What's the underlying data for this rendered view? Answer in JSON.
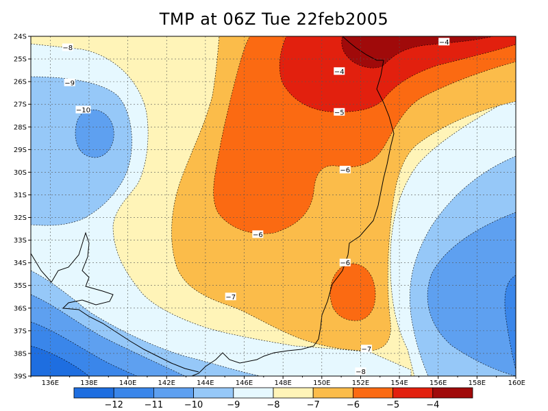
{
  "title": "TMP at 06Z Tue 22feb2005",
  "lat_ticks": [
    "24S",
    "25S",
    "26S",
    "27S",
    "28S",
    "29S",
    "30S",
    "31S",
    "32S",
    "33S",
    "34S",
    "35S",
    "36S",
    "37S",
    "38S",
    "39S"
  ],
  "lon_ticks": [
    "136E",
    "138E",
    "140E",
    "142E",
    "144E",
    "146E",
    "148E",
    "150E",
    "152E",
    "154E",
    "156E",
    "158E",
    "160E"
  ],
  "lon_range": [
    135,
    160
  ],
  "lat_range": [
    -39,
    -24
  ],
  "colorbar": {
    "levels": [
      -12,
      -11,
      -10,
      -9,
      -8,
      -7,
      -6,
      -5,
      -4
    ],
    "labels": [
      "−12",
      "−11",
      "−10",
      "−9",
      "−8",
      "−7",
      "−6",
      "−5",
      "−4"
    ],
    "colors": [
      "#1e6ee0",
      "#3a86ea",
      "#5ea0f0",
      "#96c8f8",
      "#e6f8ff",
      "#fff4b8",
      "#fbbc4a",
      "#fb6a12",
      "#e2200e",
      "#a00a0a"
    ]
  },
  "contour_labels": [
    {
      "text": "−8",
      "lon": 136.9,
      "lat": -24.5
    },
    {
      "text": "−9",
      "lon": 137.0,
      "lat": -26.05
    },
    {
      "text": "−10",
      "lon": 137.7,
      "lat": -27.25
    },
    {
      "text": "−4",
      "lon": 156.3,
      "lat": -24.25
    },
    {
      "text": "−4",
      "lon": 150.9,
      "lat": -25.55
    },
    {
      "text": "−5",
      "lon": 150.9,
      "lat": -27.35
    },
    {
      "text": "−6",
      "lon": 151.2,
      "lat": -29.9
    },
    {
      "text": "−6",
      "lon": 146.7,
      "lat": -32.75
    },
    {
      "text": "−6",
      "lon": 151.2,
      "lat": -34.0
    },
    {
      "text": "−7",
      "lon": 145.3,
      "lat": -35.5
    },
    {
      "text": "−7",
      "lon": 152.3,
      "lat": -37.8
    },
    {
      "text": "−8",
      "lon": 152.0,
      "lat": -38.8
    }
  ]
}
